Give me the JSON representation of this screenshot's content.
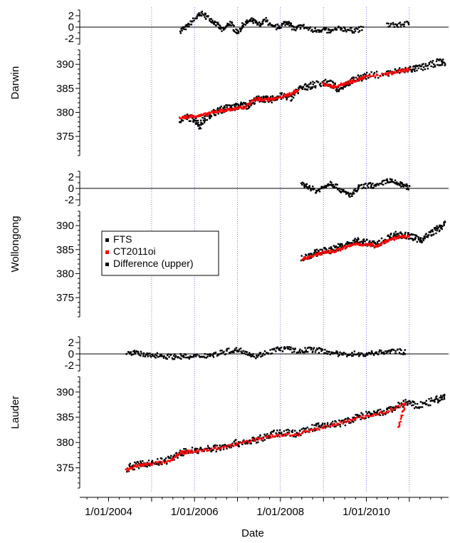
{
  "chart_data": {
    "type": "scatter",
    "xlabel": "Date",
    "x_range": [
      "2003-05-01",
      "2011-12-01"
    ],
    "x_ticks": [
      "1/01/2004",
      "1/01/2006",
      "1/01/2008",
      "1/01/2010"
    ],
    "vertical_gridlines": [
      "2005-01-01",
      "2006-01-01",
      "2007-01-01",
      "2008-01-01",
      "2009-01-01",
      "2010-01-01",
      "2011-01-01"
    ],
    "legend": {
      "placement": "left-middle",
      "entries": [
        {
          "label": "FTS",
          "color": "#000000"
        },
        {
          "label": "CT2011oi",
          "color": "#ff0000"
        },
        {
          "label": "Difference (upper)",
          "color": "#000000"
        }
      ]
    },
    "colors": {
      "fts": "#000000",
      "model": "#ff0000",
      "difference": "#000000",
      "gridline": "#5555ff"
    },
    "panels": [
      {
        "site": "Darwin",
        "diff_axis": {
          "ylim": [
            -3,
            3
          ],
          "ticks": [
            "2",
            "0",
            "-2"
          ]
        },
        "xco2_axis": {
          "ylim": [
            371,
            393
          ],
          "ticks": [
            "390",
            "385",
            "380",
            "375"
          ]
        },
        "difference_series": [
          {
            "date": "2005-09-01",
            "diff": -0.6
          },
          {
            "date": "2005-11-01",
            "diff": 0.1
          },
          {
            "date": "2006-01-15",
            "diff": 1.6
          },
          {
            "date": "2006-03-01",
            "diff": 2.4
          },
          {
            "date": "2006-05-01",
            "diff": 1.6
          },
          {
            "date": "2006-07-01",
            "diff": 0.6
          },
          {
            "date": "2006-09-01",
            "diff": -0.6
          },
          {
            "date": "2006-11-01",
            "diff": 0.8
          },
          {
            "date": "2007-01-01",
            "diff": -1.0
          },
          {
            "date": "2007-03-01",
            "diff": 0.6
          },
          {
            "date": "2007-05-01",
            "diff": 1.2
          },
          {
            "date": "2007-07-01",
            "diff": 0.4
          },
          {
            "date": "2007-09-01",
            "diff": 1.2
          },
          {
            "date": "2007-11-01",
            "diff": -0.2
          },
          {
            "date": "2008-01-01",
            "diff": 0.2
          },
          {
            "date": "2008-03-01",
            "diff": 1.0
          },
          {
            "date": "2008-05-01",
            "diff": -0.4
          },
          {
            "date": "2008-07-01",
            "diff": 0.2
          },
          {
            "date": "2008-10-01",
            "diff": -0.6
          },
          {
            "date": "2009-01-01",
            "diff": -0.4
          },
          {
            "date": "2009-03-01",
            "diff": -0.8
          },
          {
            "date": "2009-06-01",
            "diff": -0.2
          },
          {
            "date": "2009-09-01",
            "diff": -0.6
          },
          {
            "date": "2009-12-01",
            "diff": -0.3
          },
          {
            "date": "2010-07-01",
            "diff": 0.4
          },
          {
            "date": "2010-10-01",
            "diff": 0.3
          },
          {
            "date": "2011-01-01",
            "diff": 0.7
          }
        ],
        "fts_series": [
          {
            "date": "2005-09-01",
            "xco2": 378.5
          },
          {
            "date": "2005-11-01",
            "xco2": 379.0
          },
          {
            "date": "2006-01-01",
            "xco2": 378.6
          },
          {
            "date": "2006-02-15",
            "xco2": 377.2
          },
          {
            "date": "2006-04-01",
            "xco2": 378.8
          },
          {
            "date": "2006-06-01",
            "xco2": 379.8
          },
          {
            "date": "2006-08-01",
            "xco2": 380.4
          },
          {
            "date": "2006-10-01",
            "xco2": 380.9
          },
          {
            "date": "2006-12-01",
            "xco2": 381.0
          },
          {
            "date": "2007-02-01",
            "xco2": 381.5
          },
          {
            "date": "2007-04-01",
            "xco2": 381.4
          },
          {
            "date": "2007-06-01",
            "xco2": 382.6
          },
          {
            "date": "2007-08-01",
            "xco2": 382.9
          },
          {
            "date": "2007-10-01",
            "xco2": 382.5
          },
          {
            "date": "2007-12-01",
            "xco2": 383.2
          },
          {
            "date": "2008-02-01",
            "xco2": 383.4
          },
          {
            "date": "2008-04-01",
            "xco2": 383.0
          },
          {
            "date": "2008-06-01",
            "xco2": 384.7
          },
          {
            "date": "2008-08-01",
            "xco2": 385.3
          },
          {
            "date": "2008-10-01",
            "xco2": 385.7
          },
          {
            "date": "2009-01-01",
            "xco2": 386.2
          },
          {
            "date": "2009-03-01",
            "xco2": 386.0
          },
          {
            "date": "2009-05-01",
            "xco2": 384.9
          },
          {
            "date": "2009-07-01",
            "xco2": 385.8
          },
          {
            "date": "2009-09-01",
            "xco2": 386.6
          },
          {
            "date": "2009-11-01",
            "xco2": 387.1
          },
          {
            "date": "2010-01-01",
            "xco2": 387.6
          },
          {
            "date": "2010-07-01",
            "xco2": 388.1
          },
          {
            "date": "2010-10-01",
            "xco2": 388.6
          },
          {
            "date": "2011-01-01",
            "xco2": 389.0
          },
          {
            "date": "2011-03-01",
            "xco2": 389.1
          },
          {
            "date": "2011-06-01",
            "xco2": 389.6
          },
          {
            "date": "2011-09-01",
            "xco2": 390.5
          },
          {
            "date": "2011-11-01",
            "xco2": 390.3
          }
        ],
        "model_series": [
          {
            "date": "2005-09-01",
            "xco2": 378.8
          },
          {
            "date": "2005-12-01",
            "xco2": 379.2
          },
          {
            "date": "2006-03-01",
            "xco2": 379.3
          },
          {
            "date": "2006-06-01",
            "xco2": 380.0
          },
          {
            "date": "2006-09-01",
            "xco2": 380.4
          },
          {
            "date": "2006-12-01",
            "xco2": 380.7
          },
          {
            "date": "2007-03-01",
            "xco2": 381.0
          },
          {
            "date": "2007-06-01",
            "xco2": 382.8
          },
          {
            "date": "2007-09-01",
            "xco2": 382.6
          },
          {
            "date": "2007-12-01",
            "xco2": 382.9
          },
          {
            "date": "2008-03-01",
            "xco2": 383.6
          },
          {
            "date": "2008-06-01",
            "xco2": 384.6
          },
          {
            "date": "2009-01-01",
            "xco2": 385.9
          },
          {
            "date": "2009-04-01",
            "xco2": 385.3
          },
          {
            "date": "2009-07-01",
            "xco2": 386.0
          },
          {
            "date": "2009-10-01",
            "xco2": 386.7
          },
          {
            "date": "2010-01-01",
            "xco2": 387.4
          },
          {
            "date": "2010-07-01",
            "xco2": 388.0
          },
          {
            "date": "2010-10-01",
            "xco2": 388.5
          },
          {
            "date": "2011-01-01",
            "xco2": 388.9
          }
        ]
      },
      {
        "site": "Wollongong",
        "diff_axis": {
          "ylim": [
            -3,
            3
          ],
          "ticks": [
            "2",
            "0",
            "-2"
          ]
        },
        "xco2_axis": {
          "ylim": [
            371,
            393
          ],
          "ticks": [
            "390",
            "385",
            "380",
            "375"
          ]
        },
        "difference_series": [
          {
            "date": "2008-07-01",
            "diff": 0.6
          },
          {
            "date": "2008-09-01",
            "diff": 0.3
          },
          {
            "date": "2008-11-01",
            "diff": -0.5
          },
          {
            "date": "2009-01-01",
            "diff": 0.2
          },
          {
            "date": "2009-03-01",
            "diff": 1.0
          },
          {
            "date": "2009-05-01",
            "diff": 0.2
          },
          {
            "date": "2009-07-01",
            "diff": -0.8
          },
          {
            "date": "2009-09-01",
            "diff": -1.2
          },
          {
            "date": "2009-11-01",
            "diff": 0.2
          },
          {
            "date": "2010-02-01",
            "diff": 0.6
          },
          {
            "date": "2010-04-01",
            "diff": 0.3
          },
          {
            "date": "2010-07-01",
            "diff": 1.4
          },
          {
            "date": "2010-09-01",
            "diff": 1.0
          },
          {
            "date": "2010-11-01",
            "diff": 0.6
          },
          {
            "date": "2011-01-01",
            "diff": 0.1
          }
        ],
        "fts_series": [
          {
            "date": "2008-07-01",
            "xco2": 383.2
          },
          {
            "date": "2008-09-01",
            "xco2": 383.8
          },
          {
            "date": "2008-11-01",
            "xco2": 384.3
          },
          {
            "date": "2009-01-01",
            "xco2": 384.7
          },
          {
            "date": "2009-03-01",
            "xco2": 384.9
          },
          {
            "date": "2009-05-01",
            "xco2": 385.5
          },
          {
            "date": "2009-07-01",
            "xco2": 385.8
          },
          {
            "date": "2009-09-01",
            "xco2": 386.4
          },
          {
            "date": "2009-11-01",
            "xco2": 386.9
          },
          {
            "date": "2010-02-01",
            "xco2": 386.3
          },
          {
            "date": "2010-04-01",
            "xco2": 386.0
          },
          {
            "date": "2010-07-01",
            "xco2": 387.4
          },
          {
            "date": "2010-09-01",
            "xco2": 388.1
          },
          {
            "date": "2010-11-01",
            "xco2": 388.0
          },
          {
            "date": "2011-01-01",
            "xco2": 387.8
          },
          {
            "date": "2011-03-01",
            "xco2": 387.3
          },
          {
            "date": "2011-05-01",
            "xco2": 387.1
          },
          {
            "date": "2011-07-01",
            "xco2": 388.4
          },
          {
            "date": "2011-09-01",
            "xco2": 389.3
          },
          {
            "date": "2011-11-01",
            "xco2": 390.3
          }
        ],
        "model_series": [
          {
            "date": "2008-07-01",
            "xco2": 383.0
          },
          {
            "date": "2008-10-01",
            "xco2": 383.6
          },
          {
            "date": "2009-01-01",
            "xco2": 384.5
          },
          {
            "date": "2009-04-01",
            "xco2": 384.6
          },
          {
            "date": "2009-07-01",
            "xco2": 385.4
          },
          {
            "date": "2009-10-01",
            "xco2": 386.2
          },
          {
            "date": "2010-01-01",
            "xco2": 386.0
          },
          {
            "date": "2010-04-01",
            "xco2": 385.8
          },
          {
            "date": "2010-07-01",
            "xco2": 386.9
          },
          {
            "date": "2010-10-01",
            "xco2": 387.6
          },
          {
            "date": "2011-01-01",
            "xco2": 387.7
          }
        ]
      },
      {
        "site": "Lauder",
        "diff_axis": {
          "ylim": [
            -3,
            3
          ],
          "ticks": [
            "2",
            "0",
            "-2"
          ]
        },
        "xco2_axis": {
          "ylim": [
            371,
            393
          ],
          "ticks": [
            "390",
            "385",
            "380",
            "375"
          ]
        },
        "difference_series": [
          {
            "date": "2004-06-01",
            "diff": 0.4
          },
          {
            "date": "2004-09-01",
            "diff": 0.1
          },
          {
            "date": "2004-12-01",
            "diff": -0.3
          },
          {
            "date": "2005-03-01",
            "diff": -0.2
          },
          {
            "date": "2005-06-01",
            "diff": -0.5
          },
          {
            "date": "2005-09-01",
            "diff": -0.4
          },
          {
            "date": "2005-12-01",
            "diff": -0.6
          },
          {
            "date": "2006-03-01",
            "diff": -0.3
          },
          {
            "date": "2006-06-01",
            "diff": -0.2
          },
          {
            "date": "2006-09-01",
            "diff": 0.3
          },
          {
            "date": "2006-12-01",
            "diff": 0.7
          },
          {
            "date": "2007-03-01",
            "diff": 0.5
          },
          {
            "date": "2007-06-01",
            "diff": -0.4
          },
          {
            "date": "2007-09-01",
            "diff": 0.2
          },
          {
            "date": "2007-12-01",
            "diff": 0.8
          },
          {
            "date": "2008-03-01",
            "diff": 0.9
          },
          {
            "date": "2008-06-01",
            "diff": 0.4
          },
          {
            "date": "2008-09-01",
            "diff": 0.8
          },
          {
            "date": "2008-12-01",
            "diff": 0.6
          },
          {
            "date": "2009-03-01",
            "diff": 0.3
          },
          {
            "date": "2009-06-01",
            "diff": -0.2
          },
          {
            "date": "2009-09-01",
            "diff": 0.1
          },
          {
            "date": "2009-12-01",
            "diff": -0.2
          },
          {
            "date": "2010-03-01",
            "diff": 0.2
          },
          {
            "date": "2010-06-01",
            "diff": 0.3
          },
          {
            "date": "2010-09-01",
            "diff": 0.5
          },
          {
            "date": "2010-12-01",
            "diff": 0.3
          }
        ],
        "fts_series": [
          {
            "date": "2004-06-01",
            "xco2": 374.9
          },
          {
            "date": "2004-09-01",
            "xco2": 375.5
          },
          {
            "date": "2004-12-01",
            "xco2": 375.9
          },
          {
            "date": "2005-03-01",
            "xco2": 376.1
          },
          {
            "date": "2005-06-01",
            "xco2": 376.6
          },
          {
            "date": "2005-09-01",
            "xco2": 377.9
          },
          {
            "date": "2005-12-01",
            "xco2": 378.4
          },
          {
            "date": "2006-03-01",
            "xco2": 378.6
          },
          {
            "date": "2006-06-01",
            "xco2": 378.8
          },
          {
            "date": "2006-09-01",
            "xco2": 379.1
          },
          {
            "date": "2006-12-01",
            "xco2": 379.8
          },
          {
            "date": "2007-03-01",
            "xco2": 380.0
          },
          {
            "date": "2007-06-01",
            "xco2": 380.5
          },
          {
            "date": "2007-09-01",
            "xco2": 381.1
          },
          {
            "date": "2007-12-01",
            "xco2": 381.9
          },
          {
            "date": "2008-03-01",
            "xco2": 382.0
          },
          {
            "date": "2008-06-01",
            "xco2": 381.7
          },
          {
            "date": "2008-09-01",
            "xco2": 382.7
          },
          {
            "date": "2008-12-01",
            "xco2": 383.2
          },
          {
            "date": "2009-03-01",
            "xco2": 383.6
          },
          {
            "date": "2009-06-01",
            "xco2": 383.8
          },
          {
            "date": "2009-09-01",
            "xco2": 384.6
          },
          {
            "date": "2009-12-01",
            "xco2": 385.3
          },
          {
            "date": "2010-03-01",
            "xco2": 385.6
          },
          {
            "date": "2010-06-01",
            "xco2": 386.0
          },
          {
            "date": "2010-09-01",
            "xco2": 386.9
          },
          {
            "date": "2010-12-01",
            "xco2": 388.0
          },
          {
            "date": "2011-03-01",
            "xco2": 387.2
          },
          {
            "date": "2011-06-01",
            "xco2": 387.8
          },
          {
            "date": "2011-09-01",
            "xco2": 388.5
          },
          {
            "date": "2011-11-01",
            "xco2": 389.0
          }
        ],
        "model_series": [
          {
            "date": "2004-06-01",
            "xco2": 374.6
          },
          {
            "date": "2004-09-01",
            "xco2": 375.4
          },
          {
            "date": "2004-12-01",
            "xco2": 375.7
          },
          {
            "date": "2005-06-01",
            "xco2": 376.3
          },
          {
            "date": "2005-09-01",
            "xco2": 378.0
          },
          {
            "date": "2005-12-01",
            "xco2": 378.2
          },
          {
            "date": "2006-06-01",
            "xco2": 378.7
          },
          {
            "date": "2006-12-01",
            "xco2": 379.5
          },
          {
            "date": "2007-06-01",
            "xco2": 380.6
          },
          {
            "date": "2007-12-01",
            "xco2": 381.4
          },
          {
            "date": "2008-06-01",
            "xco2": 381.6
          },
          {
            "date": "2008-12-01",
            "xco2": 382.8
          },
          {
            "date": "2009-06-01",
            "xco2": 383.9
          },
          {
            "date": "2009-12-01",
            "xco2": 385.1
          },
          {
            "date": "2010-06-01",
            "xco2": 385.9
          },
          {
            "date": "2010-12-01",
            "xco2": 387.7
          },
          {
            "date": "2010-10-01",
            "xco2": 383.0
          }
        ]
      }
    ]
  }
}
